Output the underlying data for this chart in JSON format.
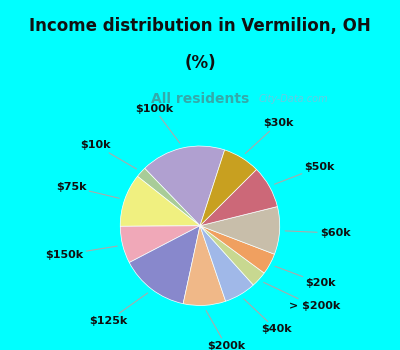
{
  "title_line1": "Income distribution in Vermilion, OH",
  "title_line2": "(%)",
  "subtitle": "All residents",
  "title_color": "#111111",
  "subtitle_color": "#33aaaa",
  "bg_cyan": "#00ffff",
  "bg_chart": "#e0f5e8",
  "labels": [
    "$100k",
    "$10k",
    "$75k",
    "$150k",
    "$125k",
    "$200k",
    "$40k",
    "> $200k",
    "$20k",
    "$60k",
    "$50k",
    "$30k"
  ],
  "sizes": [
    16,
    2,
    10,
    7,
    13,
    8,
    6,
    3,
    4,
    9,
    8,
    7
  ],
  "colors": [
    "#b0a0d0",
    "#a8cc98",
    "#f0f080",
    "#f0a8b8",
    "#8888cc",
    "#f0b888",
    "#a0b8e8",
    "#c8d890",
    "#f0a060",
    "#c8beaa",
    "#cc6878",
    "#c8a020"
  ],
  "start_angle": 72,
  "label_fontsize": 8,
  "title_fontsize": 12,
  "subtitle_fontsize": 10,
  "watermark": "City-Data.com"
}
